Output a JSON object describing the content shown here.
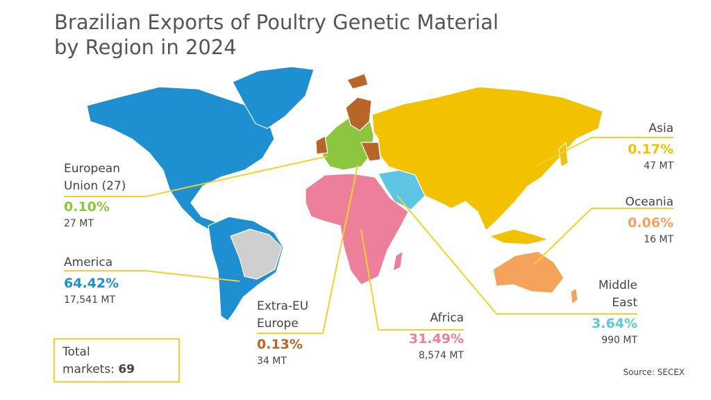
{
  "title_lines": [
    "Brazilian Exports of Poultry Genetic Material",
    "by Region in 2024"
  ],
  "regions": [
    {
      "name_lines": [
        "European",
        "Union (27)"
      ],
      "share": "0.10%",
      "amount": "27 MT",
      "color": "#8cc63f"
    },
    {
      "name_lines": [
        "America"
      ],
      "share": "64.42%",
      "amount": "17,541 MT",
      "color": "#1e8fd0"
    },
    {
      "name_lines": [
        "Extra-EU",
        "Europe"
      ],
      "share": "0.13%",
      "amount": "34 MT",
      "color": "#b8652a"
    },
    {
      "name_lines": [
        "Africa"
      ],
      "share": "31.49%",
      "amount": "8,574 MT",
      "color": "#ee7f9b"
    },
    {
      "name_lines": [
        "Middle",
        "East"
      ],
      "share": "3.64%",
      "amount": "990 MT",
      "color": "#5cc6e4"
    },
    {
      "name_lines": [
        "Oceania"
      ],
      "share": "0.06%",
      "amount": "16 MT",
      "color": "#f5a25a"
    },
    {
      "name_lines": [
        "Asia"
      ],
      "share": "0.17%",
      "amount": "47 MT",
      "color": "#f2c200"
    }
  ],
  "total": {
    "label_lines": [
      "Total",
      "markets:"
    ],
    "value": 69
  },
  "source": "Source: SECEX"
}
